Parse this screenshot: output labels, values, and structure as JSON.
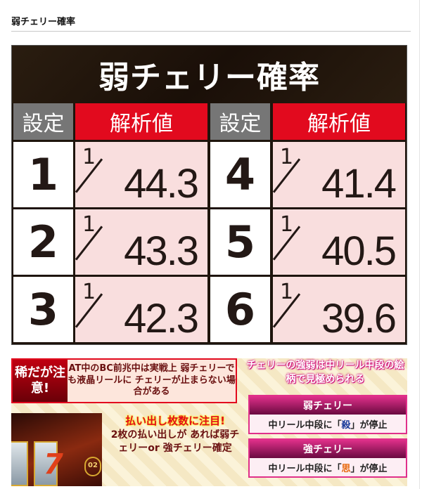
{
  "section_heading": "弱チェリー確率",
  "table": {
    "title": "弱チェリー確率",
    "col_setting": "設定",
    "col_value": "解析値",
    "rows": [
      {
        "setting": "1",
        "num": "1",
        "den": "44.3"
      },
      {
        "setting": "2",
        "num": "1",
        "den": "43.3"
      },
      {
        "setting": "3",
        "num": "1",
        "den": "42.3"
      },
      {
        "setting": "4",
        "num": "1",
        "den": "41.4"
      },
      {
        "setting": "5",
        "num": "1",
        "den": "40.5"
      },
      {
        "setting": "6",
        "num": "1",
        "den": "39.6"
      }
    ],
    "colors": {
      "header_setting": "#767676",
      "header_value": "#e20a1e",
      "value_cell": "#f9dede",
      "title_bg": "#1e140c"
    }
  },
  "notes": {
    "warn_label": "稀だが注意!",
    "warn_text": "AT中のBC前兆中は実戦上 弱チェリーでも液晶リールに チェリーが止まらない場合がある",
    "bubble": "チェリーの強弱は中リール中段の絵柄で見極められる",
    "pay_head": "払い出し枚数に注目!",
    "pay_text": "2枚の払い出しが あれば弱チェリーor 強チェリー確定",
    "coin_text": "02",
    "weak": {
      "title": "弱チェリー",
      "pre": "中リール中段に「",
      "kanji": "殺",
      "post": "」が停止"
    },
    "strong": {
      "title": "強チェリー",
      "pre": "中リール中段に「",
      "kanji": "思",
      "post": "」が停止"
    }
  }
}
